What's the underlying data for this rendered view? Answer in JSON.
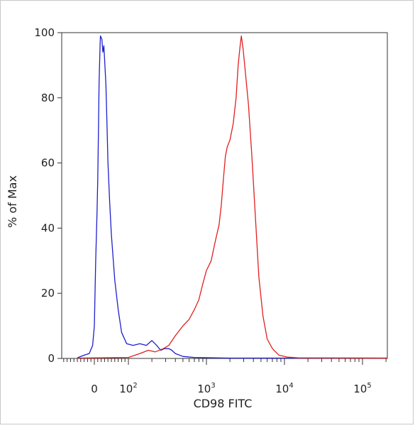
{
  "chart_data": {
    "type": "line",
    "title": "",
    "xlabel": "CD98 FITC",
    "ylabel": "% of Max",
    "x_scale": "biexponential (log above 10^2)",
    "xlim": [
      -90,
      250000
    ],
    "ylim": [
      0,
      100
    ],
    "grid": false,
    "legend": "none",
    "y_ticks": [
      "0",
      "20",
      "40",
      "60",
      "80",
      "100"
    ],
    "x_ticks": [
      {
        "base": "0",
        "exp": ""
      },
      {
        "base": "10",
        "exp": "2"
      },
      {
        "base": "10",
        "exp": "3"
      },
      {
        "base": "10",
        "exp": "4"
      },
      {
        "base": "10",
        "exp": "5"
      }
    ],
    "series": [
      {
        "color": "#1f1fcc",
        "points": [
          [
            -50,
            0.2
          ],
          [
            -30,
            1
          ],
          [
            -15,
            1.5
          ],
          [
            -5,
            4
          ],
          [
            0,
            10
          ],
          [
            4,
            30
          ],
          [
            8,
            45
          ],
          [
            10,
            55
          ],
          [
            12,
            70
          ],
          [
            14,
            85
          ],
          [
            17,
            97
          ],
          [
            18,
            99
          ],
          [
            22,
            98
          ],
          [
            25,
            94
          ],
          [
            28,
            96
          ],
          [
            30,
            92
          ],
          [
            34,
            84
          ],
          [
            37,
            72
          ],
          [
            40,
            60
          ],
          [
            45,
            48
          ],
          [
            50,
            38
          ],
          [
            60,
            24
          ],
          [
            70,
            15
          ],
          [
            80,
            8
          ],
          [
            95,
            4.5
          ],
          [
            115,
            4
          ],
          [
            140,
            4.5
          ],
          [
            170,
            4
          ],
          [
            200,
            5.5
          ],
          [
            230,
            4
          ],
          [
            260,
            2.5
          ],
          [
            290,
            3
          ],
          [
            330,
            3
          ],
          [
            360,
            2.5
          ],
          [
            400,
            1.5
          ],
          [
            500,
            0.6
          ],
          [
            700,
            0.3
          ],
          [
            2000,
            0.1
          ],
          [
            250000,
            0.1
          ]
        ]
      },
      {
        "color": "#e02020",
        "points": [
          [
            -50,
            0.1
          ],
          [
            100,
            0.3
          ],
          [
            140,
            1.5
          ],
          [
            180,
            2.5
          ],
          [
            220,
            2
          ],
          [
            280,
            3
          ],
          [
            330,
            4
          ],
          [
            400,
            7
          ],
          [
            500,
            10
          ],
          [
            600,
            12
          ],
          [
            700,
            15
          ],
          [
            800,
            18
          ],
          [
            900,
            23
          ],
          [
            1000,
            27
          ],
          [
            1150,
            30
          ],
          [
            1300,
            36
          ],
          [
            1450,
            41
          ],
          [
            1550,
            47
          ],
          [
            1650,
            55
          ],
          [
            1750,
            62
          ],
          [
            1850,
            65
          ],
          [
            2000,
            67
          ],
          [
            2200,
            72
          ],
          [
            2400,
            80
          ],
          [
            2550,
            90
          ],
          [
            2700,
            96
          ],
          [
            2800,
            99
          ],
          [
            2950,
            95
          ],
          [
            3150,
            88
          ],
          [
            3450,
            78
          ],
          [
            3800,
            63
          ],
          [
            4200,
            45
          ],
          [
            4700,
            25
          ],
          [
            5300,
            13
          ],
          [
            6000,
            6
          ],
          [
            7000,
            3
          ],
          [
            8500,
            1
          ],
          [
            11000,
            0.4
          ],
          [
            15000,
            0.2
          ],
          [
            250000,
            0.1
          ]
        ]
      }
    ]
  }
}
